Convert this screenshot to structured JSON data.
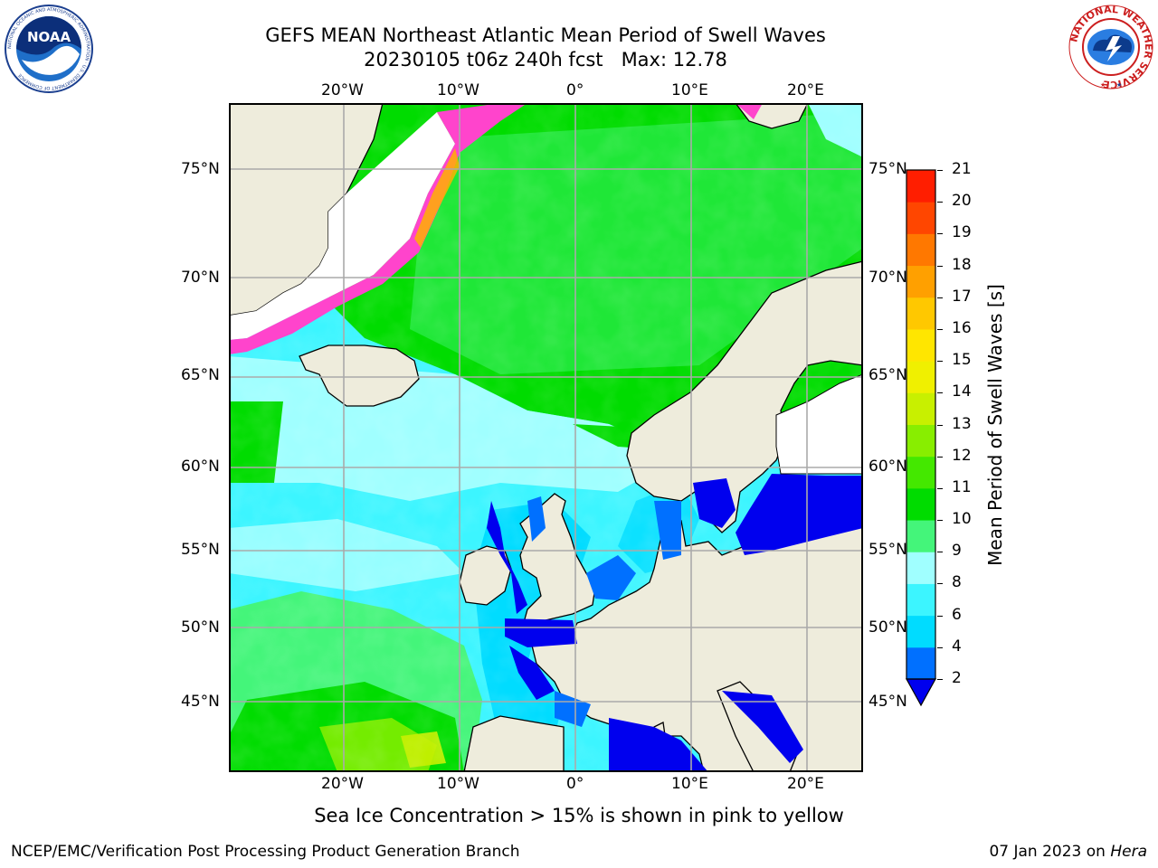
{
  "title": {
    "line1": "GEFS MEAN Northeast Atlantic Mean Period of Swell Waves",
    "line2": "20230105 t06z 240h fcst   Max: 12.78"
  },
  "logos": {
    "noaa_text": "NOAA",
    "noaa_ring": "NATIONAL OCEANIC AND ATMOSPHERIC ADMINISTRATION · U.S. DEPARTMENT OF COMMERCE",
    "nws_ring": "NATIONAL WEATHER SERVICE"
  },
  "map": {
    "lon_labels": [
      "20°W",
      "10°W",
      "0°",
      "10°E",
      "20°E"
    ],
    "lat_labels": [
      "75°N",
      "70°N",
      "65°N",
      "60°N",
      "55°N",
      "50°N",
      "45°N"
    ],
    "note": "Sea Ice Concentration > 15% is shown in pink to yellow"
  },
  "colorbar": {
    "title": "Mean Period of Swell Waves [s]",
    "ticks": [
      "2",
      "4",
      "6",
      "8",
      "9",
      "10",
      "11",
      "12",
      "13",
      "14",
      "15",
      "16",
      "17",
      "18",
      "19",
      "20",
      "21"
    ],
    "colors": [
      "#0000ee",
      "#0070ff",
      "#00dcff",
      "#3cf5ff",
      "#a0ffff",
      "#44f57a",
      "#00dc00",
      "#44e800",
      "#88ee00",
      "#c8f000",
      "#f0f000",
      "#ffe600",
      "#ffc800",
      "#ffa000",
      "#ff7800",
      "#ff4600",
      "#ff1e00",
      "#ff0000"
    ]
  },
  "footer": {
    "left": "NCEP/EMC/Verification Post Processing Product Generation Branch",
    "right_date": "07 Jan 2023 on ",
    "right_host": "Hera"
  }
}
